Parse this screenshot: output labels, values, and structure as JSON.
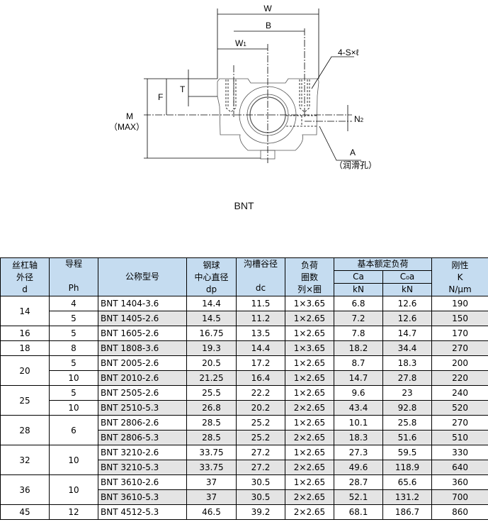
{
  "drawing": {
    "labels": {
      "W": "W",
      "B": "B",
      "W1": "W",
      "W1_sub": "1",
      "S": "4-S×ℓ",
      "T": "T",
      "F": "F",
      "M": "M",
      "M_max": "（MAX）",
      "N2": "N",
      "N2_sub": "2",
      "A": "A",
      "A_note": "（润滑孔）"
    },
    "caption": "BNT"
  },
  "table": {
    "headers": {
      "d": [
        "丝杠轴",
        "外径",
        "d"
      ],
      "ph": [
        "导程",
        "",
        "Ph"
      ],
      "model": "公称型号",
      "dp": [
        "钢球",
        "中心直径",
        "dp"
      ],
      "dc": [
        "沟槽谷径",
        "",
        "dc"
      ],
      "circuits": [
        "负荷",
        "圈数",
        "列×圈"
      ],
      "rated": "基本额定负荷",
      "ca": [
        "Ca",
        "kN"
      ],
      "c0a": [
        "C₀a",
        "kN"
      ],
      "k": [
        "刚性",
        "K",
        "N/μm"
      ]
    },
    "groups": [
      {
        "d": "14",
        "rows": [
          {
            "ph": "4",
            "model": "BNT 1404-3.6",
            "dp": "14.4",
            "dc": "11.5",
            "c": "1×3.65",
            "ca": "6.8",
            "c0a": "12.6",
            "k": "190"
          },
          {
            "ph": "5",
            "model": "BNT 1405-2.6",
            "dp": "14.5",
            "dc": "11.2",
            "c": "1×2.65",
            "ca": "7.2",
            "c0a": "12.6",
            "k": "150"
          }
        ]
      },
      {
        "d": "16",
        "rows": [
          {
            "ph": "5",
            "model": "BNT 1605-2.6",
            "dp": "16.75",
            "dc": "13.5",
            "c": "1×2.65",
            "ca": "7.8",
            "c0a": "14.7",
            "k": "170"
          }
        ]
      },
      {
        "d": "18",
        "rows": [
          {
            "ph": "8",
            "model": "BNT 1808-3.6",
            "dp": "19.3",
            "dc": "14.4",
            "c": "1×3.65",
            "ca": "18.2",
            "c0a": "34.4",
            "k": "270"
          }
        ]
      },
      {
        "d": "20",
        "rows": [
          {
            "ph": "5",
            "model": "BNT 2005-2.6",
            "dp": "20.5",
            "dc": "17.2",
            "c": "1×2.65",
            "ca": "8.7",
            "c0a": "18.3",
            "k": "200"
          },
          {
            "ph": "10",
            "model": "BNT 2010-2.6",
            "dp": "21.25",
            "dc": "16.4",
            "c": "1×2.65",
            "ca": "14.7",
            "c0a": "27.8",
            "k": "220"
          }
        ]
      },
      {
        "d": "25",
        "rows": [
          {
            "ph": "5",
            "model": "BNT 2505-2.6",
            "dp": "25.5",
            "dc": "22.2",
            "c": "1×2.65",
            "ca": "9.6",
            "c0a": "23",
            "k": "240"
          },
          {
            "ph": "10",
            "model": "BNT 2510-5.3",
            "dp": "26.8",
            "dc": "20.2",
            "c": "2×2.65",
            "ca": "43.4",
            "c0a": "92.8",
            "k": "520"
          }
        ]
      },
      {
        "d": "28",
        "ph": "6",
        "rows": [
          {
            "model": "BNT 2806-2.6",
            "dp": "28.5",
            "dc": "25.2",
            "c": "1×2.65",
            "ca": "10.1",
            "c0a": "25.8",
            "k": "270"
          },
          {
            "model": "BNT 2806-5.3",
            "dp": "28.5",
            "dc": "25.2",
            "c": "2×2.65",
            "ca": "18.3",
            "c0a": "51.6",
            "k": "510"
          }
        ]
      },
      {
        "d": "32",
        "ph": "10",
        "rows": [
          {
            "model": "BNT 3210-2.6",
            "dp": "33.75",
            "dc": "27.2",
            "c": "1×2.65",
            "ca": "27.3",
            "c0a": "59.5",
            "k": "330"
          },
          {
            "model": "BNT 3210-5.3",
            "dp": "33.75",
            "dc": "27.2",
            "c": "2×2.65",
            "ca": "49.6",
            "c0a": "118.9",
            "k": "640"
          }
        ]
      },
      {
        "d": "36",
        "ph": "10",
        "rows": [
          {
            "model": "BNT 3610-2.6",
            "dp": "37",
            "dc": "30.5",
            "c": "1×2.65",
            "ca": "28.7",
            "c0a": "65.6",
            "k": "360"
          },
          {
            "model": "BNT 3610-5.3",
            "dp": "37",
            "dc": "30.5",
            "c": "2×2.65",
            "ca": "52.1",
            "c0a": "131.2",
            "k": "700"
          }
        ]
      },
      {
        "d": "45",
        "rows": [
          {
            "ph": "12",
            "model": "BNT 4512-5.3",
            "dp": "46.5",
            "dc": "39.2",
            "c": "2×2.65",
            "ca": "68.1",
            "c0a": "186.7",
            "k": "860"
          }
        ]
      }
    ]
  }
}
